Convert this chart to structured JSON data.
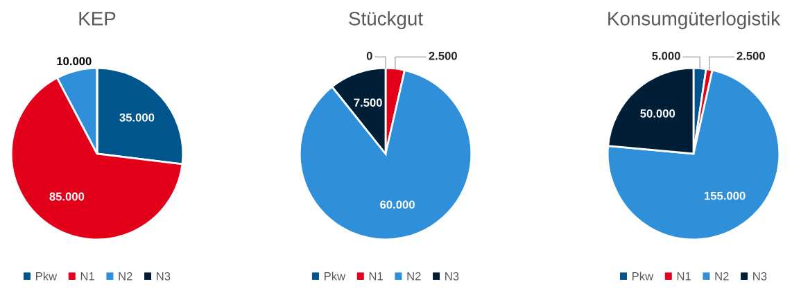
{
  "chart_data": [
    {
      "type": "pie",
      "title": "KEP",
      "categories": [
        "Pkw",
        "N1",
        "N2",
        "N3"
      ],
      "values": [
        35000,
        85000,
        10000,
        0
      ],
      "value_labels": [
        "35.000",
        "85.000",
        "10.000",
        null
      ],
      "colors": [
        "#00558c",
        "#e2001a",
        "#2f8fd8",
        "#001f36"
      ],
      "legend": "bottom"
    },
    {
      "type": "pie",
      "title": "Stückgut",
      "categories": [
        "Pkw",
        "N1",
        "N2",
        "N3"
      ],
      "values": [
        0,
        2500,
        60000,
        7500
      ],
      "value_labels": [
        "0",
        "2.500",
        "60.000",
        "7.500"
      ],
      "colors": [
        "#00558c",
        "#e2001a",
        "#2f8fd8",
        "#001f36"
      ],
      "legend": "bottom"
    },
    {
      "type": "pie",
      "title": "Konsumgüterlogistik",
      "categories": [
        "Pkw",
        "N1",
        "N2",
        "N3"
      ],
      "values": [
        5000,
        2500,
        155000,
        50000
      ],
      "value_labels": [
        "5.000",
        "2.500",
        "155.000",
        "50.000"
      ],
      "colors": [
        "#00558c",
        "#e2001a",
        "#2f8fd8",
        "#001f36"
      ],
      "legend": "bottom"
    }
  ]
}
